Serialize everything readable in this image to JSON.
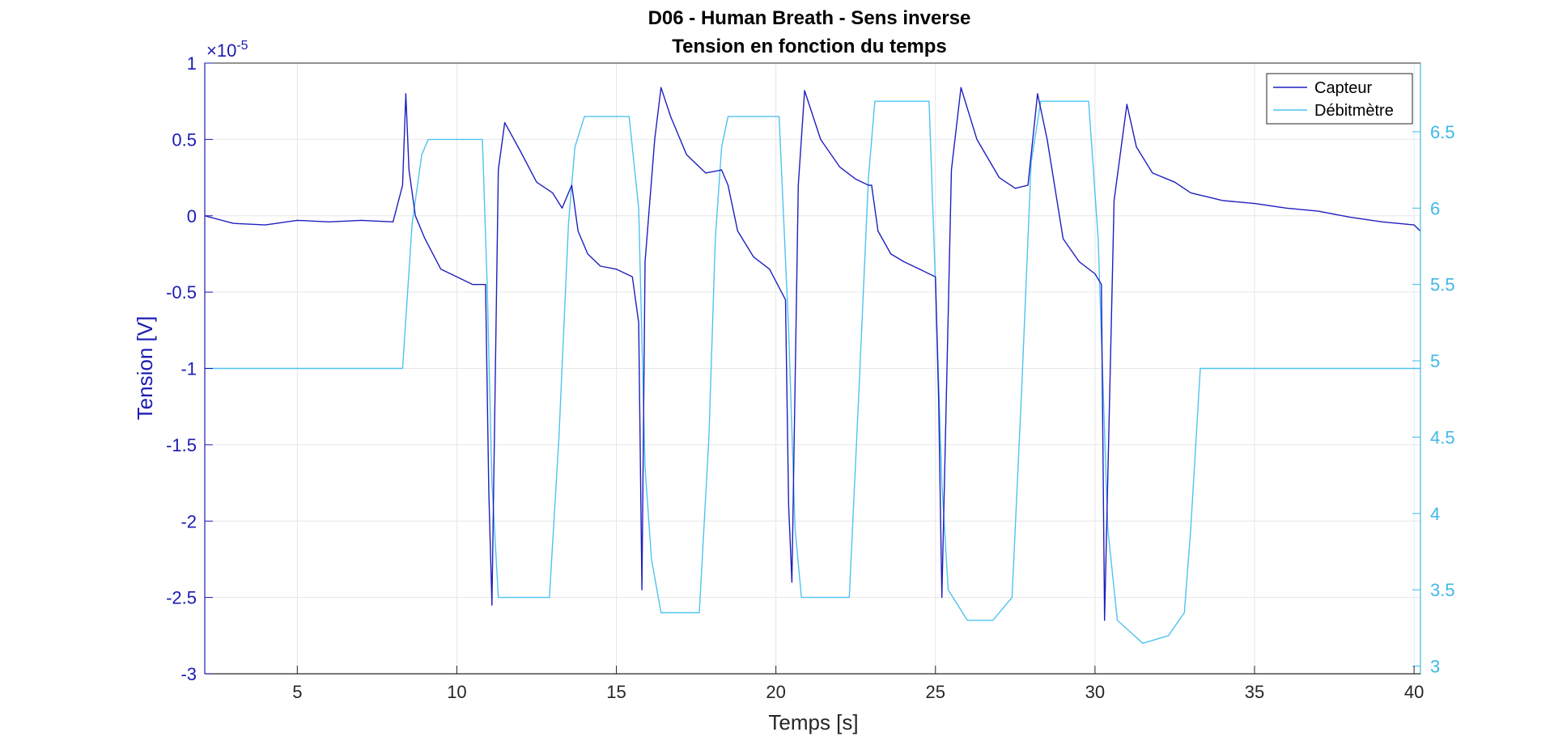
{
  "chart_data": {
    "type": "line",
    "title": "D06 - Human Breath - Sens inverse",
    "subtitle": "Tension en fonction du temps",
    "xlabel": "Temps [s]",
    "ylabel_left": "Tension [V]",
    "ylabel_right": "",
    "left_exponent_base": "×10",
    "left_exponent_power": "-5",
    "xlim": [
      2.1,
      40.2
    ],
    "ylim_left": [
      -3,
      1
    ],
    "ylim_right": [
      2.95,
      6.95
    ],
    "x_ticks": [
      5,
      10,
      15,
      20,
      25,
      30,
      35,
      40
    ],
    "y_ticks_left": [
      -3,
      -2.5,
      -2,
      -1.5,
      -1,
      -0.5,
      0,
      0.5,
      1
    ],
    "y_ticks_right": [
      3,
      3.5,
      4,
      4.5,
      5,
      5.5,
      6,
      6.5
    ],
    "grid": true,
    "legend_position": "top-right",
    "colors": {
      "capteur": "#1f1fbf",
      "debitmetre": "#4ec3ee",
      "grid": "#e6e6e6",
      "axis_left": "#1b1bb3",
      "axis_right": "#3fb8e8"
    },
    "series": [
      {
        "name": "Capteur",
        "axis": "left",
        "x": [
          2.1,
          3,
          4,
          5,
          6,
          7,
          8,
          8.3,
          8.4,
          8.5,
          8.7,
          9,
          9.5,
          10,
          10.5,
          10.9,
          11.0,
          11.1,
          11.3,
          11.5,
          12,
          12.5,
          13,
          13.3,
          13.6,
          13.8,
          14.1,
          14.5,
          15,
          15.5,
          15.7,
          15.8,
          15.9,
          16.2,
          16.4,
          16.7,
          17.2,
          17.8,
          18.3,
          18.5,
          18.8,
          19.3,
          19.8,
          20.3,
          20.4,
          20.5,
          20.7,
          20.9,
          21.4,
          22,
          22.5,
          22.9,
          23.0,
          23.2,
          23.6,
          24.0,
          24.5,
          25.0,
          25.1,
          25.2,
          25.5,
          25.8,
          26.3,
          27,
          27.5,
          27.9,
          28.2,
          28.5,
          29.0,
          29.5,
          30.0,
          30.2,
          30.3,
          30.6,
          31.0,
          31.3,
          31.8,
          32.5,
          33,
          34,
          35,
          36,
          37,
          38,
          39,
          40,
          40.2
        ],
        "y": [
          0,
          -0.05,
          -0.06,
          -0.03,
          -0.04,
          -0.03,
          -0.04,
          0.2,
          0.8,
          0.3,
          0.0,
          -0.15,
          -0.35,
          -0.4,
          -0.45,
          -0.45,
          -1.8,
          -2.55,
          0.3,
          0.61,
          0.42,
          0.22,
          0.15,
          0.05,
          0.2,
          -0.1,
          -0.25,
          -0.33,
          -0.35,
          -0.4,
          -0.7,
          -2.45,
          -0.3,
          0.5,
          0.84,
          0.65,
          0.4,
          0.28,
          0.3,
          0.2,
          -0.1,
          -0.27,
          -0.35,
          -0.55,
          -1.9,
          -2.4,
          0.2,
          0.82,
          0.5,
          0.32,
          0.24,
          0.2,
          0.2,
          -0.1,
          -0.25,
          -0.3,
          -0.35,
          -0.4,
          -1.2,
          -2.5,
          0.3,
          0.84,
          0.5,
          0.25,
          0.18,
          0.2,
          0.8,
          0.5,
          -0.15,
          -0.3,
          -0.38,
          -0.45,
          -2.65,
          0.1,
          0.73,
          0.45,
          0.28,
          0.22,
          0.15,
          0.1,
          0.08,
          0.05,
          0.03,
          -0.01,
          -0.04,
          -0.06,
          -0.1
        ]
      },
      {
        "name": "Débitmètre",
        "axis": "right",
        "x": [
          2.1,
          8.3,
          8.6,
          8.9,
          9.1,
          10.8,
          10.95,
          11.1,
          11.3,
          12.9,
          13.2,
          13.5,
          13.7,
          14.0,
          15.4,
          15.7,
          15.9,
          16.1,
          16.4,
          17.6,
          17.9,
          18.1,
          18.3,
          18.5,
          20.1,
          20.4,
          20.6,
          20.8,
          22.3,
          22.6,
          22.9,
          23.1,
          24.8,
          25.0,
          25.2,
          25.4,
          26.0,
          26.8,
          27.4,
          27.7,
          28.0,
          28.3,
          29.8,
          30.1,
          30.4,
          30.7,
          31.5,
          32.3,
          32.8,
          33.0,
          33.3,
          40.2
        ],
        "y": [
          4.95,
          4.95,
          5.9,
          6.35,
          6.45,
          6.45,
          5.5,
          4.2,
          3.45,
          3.45,
          4.5,
          5.9,
          6.4,
          6.6,
          6.6,
          6.0,
          4.3,
          3.7,
          3.35,
          3.35,
          4.5,
          5.8,
          6.4,
          6.6,
          6.6,
          5.2,
          3.9,
          3.45,
          3.45,
          4.8,
          6.2,
          6.7,
          6.7,
          5.5,
          4.2,
          3.5,
          3.3,
          3.3,
          3.45,
          4.8,
          6.3,
          6.7,
          6.7,
          5.8,
          3.9,
          3.3,
          3.15,
          3.2,
          3.35,
          3.9,
          4.95,
          4.95
        ]
      }
    ]
  }
}
